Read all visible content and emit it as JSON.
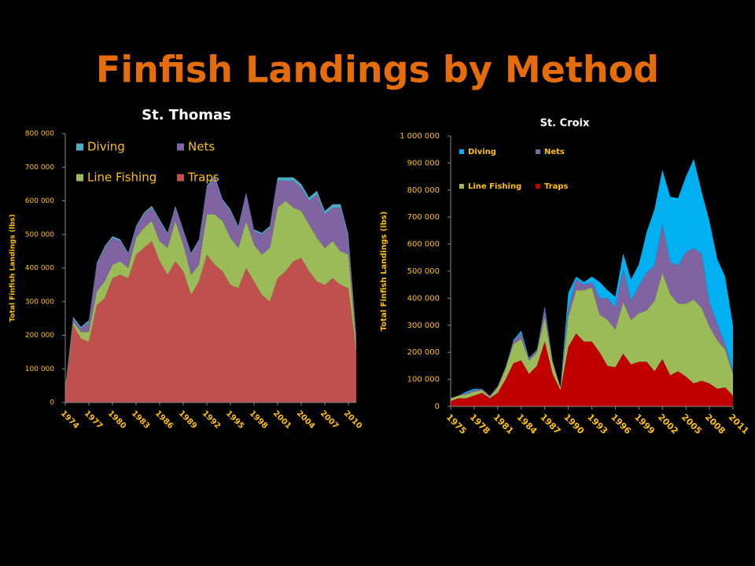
{
  "title": "Finfish Landings by Method",
  "chart_data": [
    {
      "type": "stacked_area",
      "title": "St. Thomas",
      "y_label": "Total Finfish Landings (lbs)",
      "x": [
        1974,
        1975,
        1976,
        1977,
        1978,
        1979,
        1980,
        1981,
        1982,
        1983,
        1984,
        1985,
        1986,
        1987,
        1988,
        1989,
        1990,
        1991,
        1992,
        1993,
        1994,
        1995,
        1996,
        1997,
        1998,
        1999,
        2000,
        2001,
        2002,
        2003,
        2004,
        2005,
        2006,
        2007,
        2008,
        2009,
        2010,
        2011
      ],
      "xlim": [
        1974,
        2011
      ],
      "xticks": [
        1974,
        1977,
        1980,
        1983,
        1986,
        1989,
        1992,
        1995,
        1998,
        2001,
        2004,
        2007,
        2010
      ],
      "ylim": [
        0,
        800000
      ],
      "yticks": [
        {
          "value": 0,
          "label": "0"
        },
        {
          "value": 100000,
          "label": "100 000"
        },
        {
          "value": 200000,
          "label": "200 000"
        },
        {
          "value": 300000,
          "label": "300 000"
        },
        {
          "value": 400000,
          "label": "400 000"
        },
        {
          "value": 500000,
          "label": "500 000"
        },
        {
          "value": 600000,
          "label": "600 000"
        },
        {
          "value": 700000,
          "label": "700 000"
        },
        {
          "value": 800000,
          "label": "800 000"
        }
      ],
      "legend": "upper left",
      "series": [
        {
          "name": "Diving",
          "color": "#4bacc6",
          "values": [
            5000,
            5000,
            5000,
            5000,
            5000,
            5000,
            5000,
            5000,
            5000,
            5000,
            5000,
            5000,
            5000,
            5000,
            5000,
            5000,
            5000,
            5000,
            5000,
            5000,
            5000,
            5000,
            5000,
            5000,
            5000,
            5000,
            5000,
            10000,
            10000,
            10000,
            10000,
            10000,
            10000,
            10000,
            10000,
            10000,
            10000,
            10000
          ]
        },
        {
          "name": "Nets",
          "color": "#8064a2",
          "values": [
            0,
            10000,
            10000,
            30000,
            80000,
            100000,
            80000,
            60000,
            40000,
            30000,
            40000,
            40000,
            60000,
            40000,
            40000,
            40000,
            60000,
            70000,
            80000,
            110000,
            60000,
            80000,
            60000,
            80000,
            40000,
            60000,
            60000,
            80000,
            60000,
            80000,
            70000,
            70000,
            130000,
            100000,
            100000,
            130000,
            50000,
            20000
          ]
        },
        {
          "name": "Line Fishing",
          "color": "#9bbb59",
          "values": [
            10000,
            10000,
            20000,
            30000,
            40000,
            50000,
            40000,
            40000,
            30000,
            50000,
            60000,
            60000,
            60000,
            80000,
            120000,
            80000,
            60000,
            50000,
            120000,
            150000,
            150000,
            140000,
            120000,
            140000,
            110000,
            120000,
            160000,
            210000,
            210000,
            160000,
            140000,
            140000,
            130000,
            110000,
            110000,
            100000,
            100000,
            20000
          ]
        },
        {
          "name": "Traps",
          "color": "#c0504d",
          "values": [
            30000,
            230000,
            190000,
            180000,
            290000,
            310000,
            370000,
            380000,
            370000,
            440000,
            460000,
            480000,
            420000,
            380000,
            420000,
            390000,
            320000,
            360000,
            440000,
            410000,
            390000,
            350000,
            340000,
            400000,
            360000,
            320000,
            300000,
            370000,
            390000,
            420000,
            430000,
            390000,
            360000,
            350000,
            370000,
            350000,
            340000,
            150000
          ]
        }
      ]
    },
    {
      "type": "stacked_area",
      "title": "St. Croix",
      "y_label": "Total Finfish Landings (lbs)",
      "x": [
        1975,
        1976,
        1977,
        1978,
        1979,
        1980,
        1981,
        1982,
        1983,
        1984,
        1985,
        1986,
        1987,
        1988,
        1989,
        1990,
        1991,
        1992,
        1993,
        1994,
        1995,
        1996,
        1997,
        1998,
        1999,
        2000,
        2001,
        2002,
        2003,
        2004,
        2005,
        2006,
        2007,
        2008,
        2009,
        2010,
        2011
      ],
      "xlim": [
        1975,
        2011
      ],
      "xticks": [
        1975,
        1978,
        1981,
        1984,
        1987,
        1990,
        1993,
        1996,
        1999,
        2002,
        2005,
        2008,
        2011
      ],
      "ylim": [
        0,
        1000000
      ],
      "yticks": [
        {
          "value": 0,
          "label": "0"
        },
        {
          "value": 100000,
          "label": "100 000"
        },
        {
          "value": 200000,
          "label": "200 000"
        },
        {
          "value": 300000,
          "label": "300 000"
        },
        {
          "value": 400000,
          "label": "400 000"
        },
        {
          "value": 500000,
          "label": "500 000"
        },
        {
          "value": 600000,
          "label": "600 000"
        },
        {
          "value": 700000,
          "label": "700 000"
        },
        {
          "value": 800000,
          "label": "800 000"
        },
        {
          "value": 900000,
          "label": "900 000"
        },
        {
          "value": 1000000,
          "label": "1 000 000"
        }
      ],
      "legend": "upper left",
      "series": [
        {
          "name": "Diving",
          "color": "#00b0f0",
          "values": [
            0,
            0,
            5000,
            5000,
            0,
            0,
            0,
            0,
            5000,
            10000,
            5000,
            0,
            10000,
            0,
            0,
            60000,
            10000,
            10000,
            20000,
            60000,
            30000,
            40000,
            60000,
            80000,
            80000,
            150000,
            210000,
            200000,
            240000,
            250000,
            280000,
            330000,
            230000,
            300000,
            240000,
            250000,
            170000
          ]
        },
        {
          "name": "Nets",
          "color": "#8064a2",
          "values": [
            0,
            0,
            5000,
            5000,
            5000,
            5000,
            5000,
            5000,
            10000,
            20000,
            5000,
            10000,
            30000,
            10000,
            0,
            30000,
            40000,
            20000,
            20000,
            60000,
            80000,
            80000,
            120000,
            70000,
            100000,
            140000,
            130000,
            180000,
            120000,
            140000,
            190000,
            190000,
            200000,
            90000,
            60000,
            20000,
            10000
          ]
        },
        {
          "name": "Line Fishing",
          "color": "#9bbb59",
          "values": [
            10000,
            10000,
            15000,
            15000,
            10000,
            5000,
            20000,
            40000,
            70000,
            80000,
            50000,
            50000,
            90000,
            40000,
            10000,
            110000,
            160000,
            190000,
            200000,
            140000,
            170000,
            140000,
            190000,
            165000,
            180000,
            190000,
            260000,
            320000,
            300000,
            250000,
            270000,
            310000,
            270000,
            210000,
            180000,
            140000,
            80000
          ]
        },
        {
          "name": "Traps",
          "color": "#c00000",
          "values": [
            20000,
            30000,
            30000,
            40000,
            50000,
            30000,
            50000,
            100000,
            160000,
            170000,
            120000,
            150000,
            240000,
            120000,
            60000,
            220000,
            270000,
            240000,
            240000,
            200000,
            150000,
            145000,
            195000,
            155000,
            165000,
            165000,
            130000,
            175000,
            115000,
            130000,
            110000,
            85000,
            95000,
            85000,
            65000,
            70000,
            40000
          ]
        }
      ]
    }
  ]
}
